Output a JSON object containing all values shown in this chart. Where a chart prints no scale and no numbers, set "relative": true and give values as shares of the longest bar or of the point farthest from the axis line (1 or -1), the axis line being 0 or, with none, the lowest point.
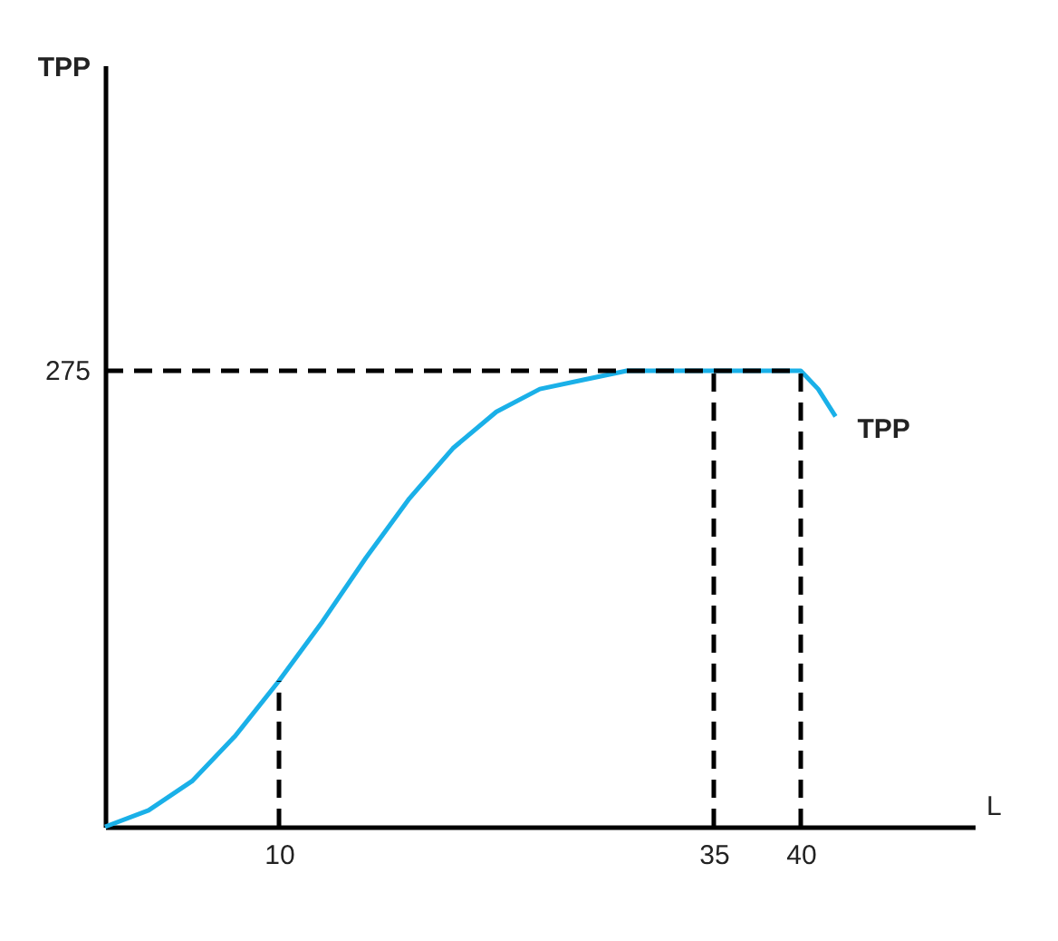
{
  "chart_data": {
    "type": "line",
    "relative": true,
    "xlabel": "L",
    "xlim": [
      0,
      50
    ],
    "xticks": [
      10,
      35,
      40
    ],
    "grid": false,
    "marker": "none",
    "annotations": [
      "TPP",
      {
        "text": "275",
        "x": 0,
        "y": 1
      }
    ],
    "series": [
      {
        "name": "TPP",
        "color": "#1ab0e8",
        "line_style": "solid",
        "x": [
          0,
          2.5,
          5,
          7.5,
          10,
          12.5,
          15,
          17.5,
          20,
          22.5,
          25,
          27.5,
          30,
          32.5,
          35,
          37.5,
          40,
          41,
          42
        ],
        "values": [
          0,
          0.036,
          0.1,
          0.2,
          0.32,
          0.45,
          0.59,
          0.72,
          0.83,
          0.91,
          0.96,
          0.98,
          1.0,
          1.0,
          1.0,
          1.0,
          1.0,
          0.96,
          0.9
        ]
      },
      {
        "type": "line",
        "color": "#000000",
        "line_style": "dashed",
        "x": [
          10,
          10
        ],
        "values": [
          0,
          0.32
        ]
      },
      {
        "type": "line",
        "color": "#000000",
        "line_style": "dashed",
        "x": [
          35,
          35
        ],
        "values": [
          0,
          1.0
        ]
      },
      {
        "type": "line",
        "color": "#000000",
        "line_style": "dashed",
        "x": [
          40,
          40
        ],
        "values": [
          0,
          1.0
        ]
      },
      {
        "type": "line",
        "color": "#000000",
        "line_style": "dashed",
        "x": [
          0,
          40
        ],
        "values": [
          1.0,
          1.0
        ]
      }
    ]
  }
}
